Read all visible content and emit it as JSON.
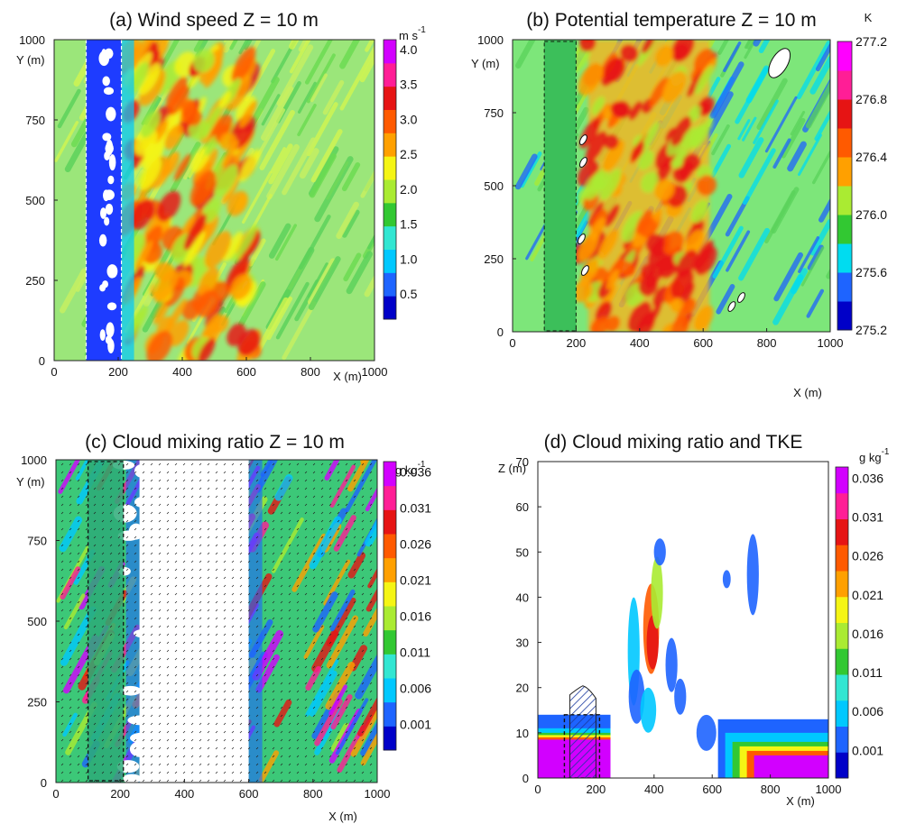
{
  "chart_data": [
    {
      "type": "heatmap",
      "title": "(a) Wind speed Z = 10 m",
      "xlabel": "X (m)",
      "ylabel": "Y (m)",
      "xlim": [
        0,
        1000
      ],
      "ylim": [
        0,
        1000
      ],
      "xticks": [
        "0",
        "200",
        "400",
        "600",
        "800",
        "1000"
      ],
      "yticks": [
        "0",
        "250",
        "500",
        "750",
        "1000"
      ],
      "colorbar": {
        "unit": "m s",
        "unit_exp": "-1",
        "ticks": [
          "0.5",
          "1.0",
          "1.5",
          "2.0",
          "2.5",
          "3.0",
          "3.5",
          "4.0"
        ],
        "colors": [
          "#0000c8",
          "#1e64ff",
          "#00c8ff",
          "#32e6d2",
          "#32c832",
          "#aaeb32",
          "#f5f514",
          "#ffa000",
          "#ff5a00",
          "#e61414",
          "#ff1e96",
          "#d200ff"
        ]
      },
      "features": {
        "background": "#9be67a",
        "strip_x": [
          100,
          210
        ],
        "strip_color": "#1e3cff",
        "warm_band_x": [
          230,
          620
        ]
      }
    },
    {
      "type": "heatmap",
      "title": "(b) Potential temperature Z = 10 m",
      "xlabel": "X (m)",
      "ylabel": "Y (m)",
      "xlim": [
        0,
        1000
      ],
      "ylim": [
        0,
        1000
      ],
      "xticks": [
        "0",
        "200",
        "400",
        "600",
        "800",
        "1000"
      ],
      "yticks": [
        "0",
        "250",
        "500",
        "750",
        "1000"
      ],
      "colorbar": {
        "unit": "K",
        "ticks": [
          "275.2",
          "275.6",
          "276.0",
          "276.4",
          "276.8",
          "277.2"
        ],
        "colors": [
          "#0000c8",
          "#1e64ff",
          "#00dcf0",
          "#32c832",
          "#aaeb32",
          "#ffa000",
          "#ff5a00",
          "#e61414",
          "#ff1e96",
          "#ff00ff"
        ]
      },
      "features": {
        "background": "#7de67a",
        "strip_x": [
          100,
          200
        ],
        "strip_color": "#3cbf5a",
        "warm_band_x": [
          210,
          620
        ]
      }
    },
    {
      "type": "heatmap",
      "title": "(c) Cloud mixing ratio Z = 10 m",
      "xlabel": "X (m)",
      "ylabel": "Y (m)",
      "xlim": [
        0,
        1000
      ],
      "ylim": [
        0,
        1000
      ],
      "xticks": [
        "0",
        "200",
        "400",
        "600",
        "800",
        "1000"
      ],
      "yticks": [
        "0",
        "250",
        "500",
        "750",
        "1000"
      ],
      "colorbar": {
        "unit": "g kg",
        "unit_exp": "-1",
        "ticks": [
          "0.001",
          "0.006",
          "0.011",
          "0.016",
          "0.021",
          "0.026",
          "0.031",
          "0.036"
        ],
        "colors": [
          "#0000c8",
          "#1e64ff",
          "#00c8ff",
          "#32e6d2",
          "#32c832",
          "#aaeb32",
          "#f5f514",
          "#ffa000",
          "#ff5a00",
          "#e61414",
          "#ff1e96",
          "#d200ff"
        ]
      },
      "features": {
        "background": "#3cc878",
        "strip_x": [
          100,
          210
        ],
        "strip_color": "#2daa78",
        "clear_band_x": [
          260,
          600
        ]
      }
    },
    {
      "type": "heatmap",
      "title": "(d) Cloud mixing ratio and TKE",
      "xlabel": "X (m)",
      "ylabel": "Z (m)",
      "xlim": [
        0,
        1000
      ],
      "ylim": [
        0,
        70
      ],
      "xticks": [
        "0",
        "200",
        "400",
        "600",
        "800",
        "1000"
      ],
      "yticks": [
        "0",
        "10",
        "20",
        "30",
        "40",
        "50",
        "60",
        "70"
      ],
      "colorbar": {
        "unit": "g kg",
        "unit_exp": "-1",
        "ticks": [
          "0.001",
          "0.006",
          "0.011",
          "0.016",
          "0.021",
          "0.026",
          "0.031",
          "0.036"
        ],
        "colors": [
          "#0000c8",
          "#1e64ff",
          "#00c8ff",
          "#32e6d2",
          "#32c832",
          "#aaeb32",
          "#f5f514",
          "#ffa000",
          "#ff5a00",
          "#e61414",
          "#ff1e96",
          "#d200ff"
        ]
      },
      "features": {
        "fog_left_top_z": 14,
        "fog_right_top_z": 13,
        "building_x": [
          110,
          200
        ],
        "building_top_z": 20
      }
    }
  ]
}
